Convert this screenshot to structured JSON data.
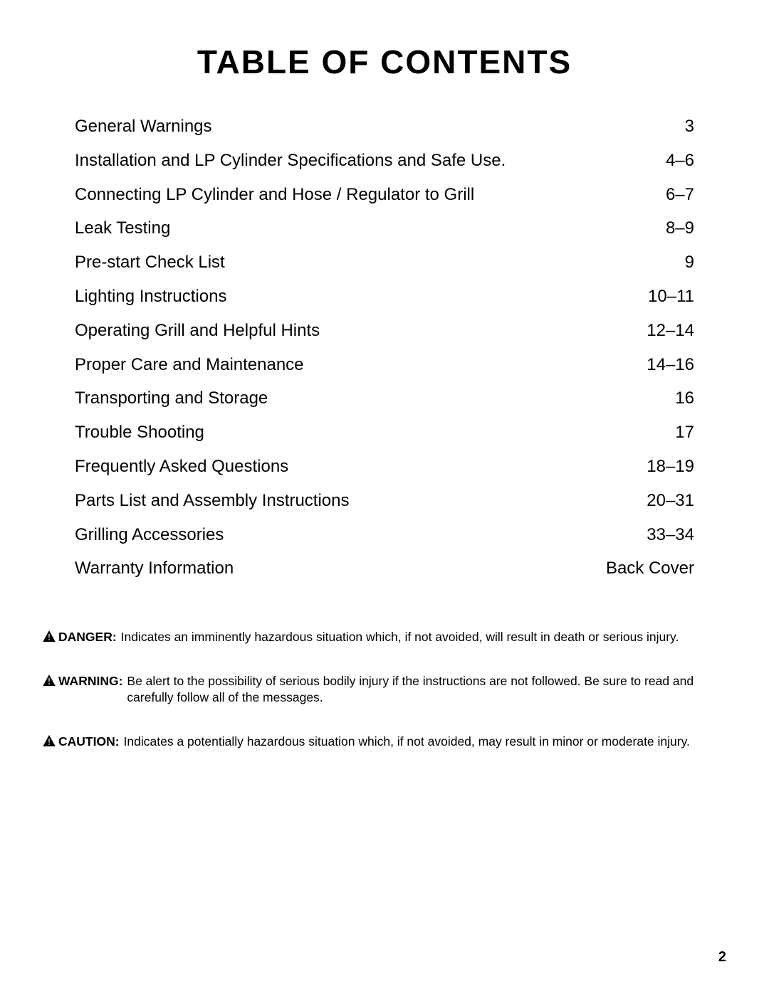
{
  "title": "TABLE OF CONTENTS",
  "title_fontsize": 46,
  "title_letter_spacing": 2,
  "background_color": "#ffffff",
  "text_color": "#000000",
  "body_font": "Arial, Helvetica, sans-serif",
  "title_font": "Arial Black, Arial, Helvetica, sans-serif",
  "toc_fontsize": 24,
  "toc_row_gap": 19,
  "toc": [
    {
      "label": "General Warnings",
      "page": "3"
    },
    {
      "label": "Installation and LP Cylinder Specifications and Safe Use.",
      "page": "4–6"
    },
    {
      "label": "Connecting LP Cylinder and Hose / Regulator to Grill",
      "page": "6–7"
    },
    {
      "label": "Leak Testing",
      "page": "8–9"
    },
    {
      "label": "Pre-start Check List",
      "page": "9"
    },
    {
      "label": "Lighting Instructions",
      "page": "10–11"
    },
    {
      "label": "Operating Grill and Helpful Hints",
      "page": "12–14"
    },
    {
      "label": "Proper Care and Maintenance",
      "page": "14–16"
    },
    {
      "label": "Transporting and Storage",
      "page": "16"
    },
    {
      "label": "Trouble Shooting",
      "page": "17"
    },
    {
      "label": "Frequently Asked Questions",
      "page": "18–19"
    },
    {
      "label": "Parts List and Assembly Instructions",
      "page": "20–31"
    },
    {
      "label": "Grilling Accessories",
      "page": "33–34"
    },
    {
      "label": "Warranty Information",
      "page": "Back Cover"
    }
  ],
  "notices_fontsize": 17.5,
  "notices_gap": 38,
  "notices": [
    {
      "label": "DANGER:",
      "icon": "warning-triangle",
      "text": "Indicates an imminently hazardous situation which, if not avoided, will result in death or serious injury."
    },
    {
      "label": "WARNING:",
      "icon": "warning-triangle",
      "text": "Be alert to the possibility of serious bodily injury if the instructions are not followed. Be sure to read and carefully follow all of the messages."
    },
    {
      "label": "CAUTION:",
      "icon": "warning-triangle",
      "text": "Indicates a potentially hazardous situation which, if not avoided, may result in minor or moderate injury."
    }
  ],
  "page_number": "2",
  "page_number_fontsize": 20,
  "icon_fill": "#000000"
}
